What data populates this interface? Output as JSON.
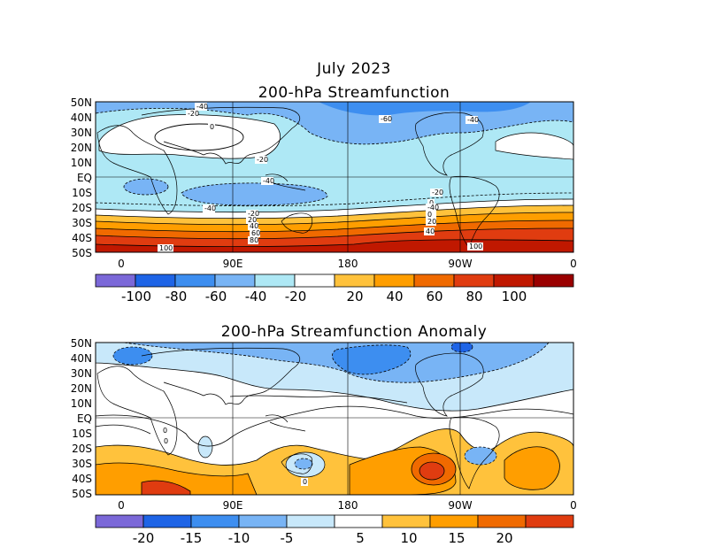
{
  "figure": {
    "title": "July 2023",
    "panels": [
      {
        "title": "200-hPa Streamfunction",
        "lat_labels": [
          "50N",
          "40N",
          "30N",
          "20N",
          "10N",
          "EQ",
          "10S",
          "20S",
          "30S",
          "40S",
          "50S"
        ],
        "lon_labels": [
          "0",
          "90E",
          "180",
          "90W",
          "0"
        ],
        "colorbar": {
          "labels": [
            "-100",
            "-80",
            "-60",
            "-40",
            "-20",
            "20",
            "40",
            "60",
            "80",
            "100"
          ],
          "colors": [
            "#7b68d8",
            "#1e64e6",
            "#3d8ef0",
            "#78b4f5",
            "#aee8f5",
            "#ffffff",
            "#ffc23c",
            "#ff9e00",
            "#f06a00",
            "#e03c10",
            "#c01800",
            "#9a0000"
          ]
        },
        "contour_labels": [
          "-40",
          "-20",
          "0",
          "-60",
          "-40",
          "-20",
          "-40",
          "-20",
          "-40",
          "-20",
          "0",
          "20",
          "40",
          "60",
          "80",
          "100",
          "100",
          "-40",
          "0",
          "20",
          "40",
          "60",
          "80"
        ]
      },
      {
        "title": "200-hPa Streamfunction Anomaly",
        "lat_labels": [
          "50N",
          "40N",
          "30N",
          "20N",
          "10N",
          "EQ",
          "10S",
          "20S",
          "30S",
          "40S",
          "50S"
        ],
        "lon_labels": [
          "0",
          "90E",
          "180",
          "90W",
          "0"
        ],
        "colorbar": {
          "labels": [
            "-20",
            "-15",
            "-10",
            "-5",
            "5",
            "10",
            "15",
            "20"
          ],
          "colors": [
            "#7b68d8",
            "#1e64e6",
            "#3d8ef0",
            "#78b4f5",
            "#c8e8fa",
            "#ffffff",
            "#ffc23c",
            "#ff9e00",
            "#f06a00",
            "#e03c10"
          ]
        },
        "contour_labels": [
          "0",
          "0",
          "0"
        ]
      }
    ]
  }
}
